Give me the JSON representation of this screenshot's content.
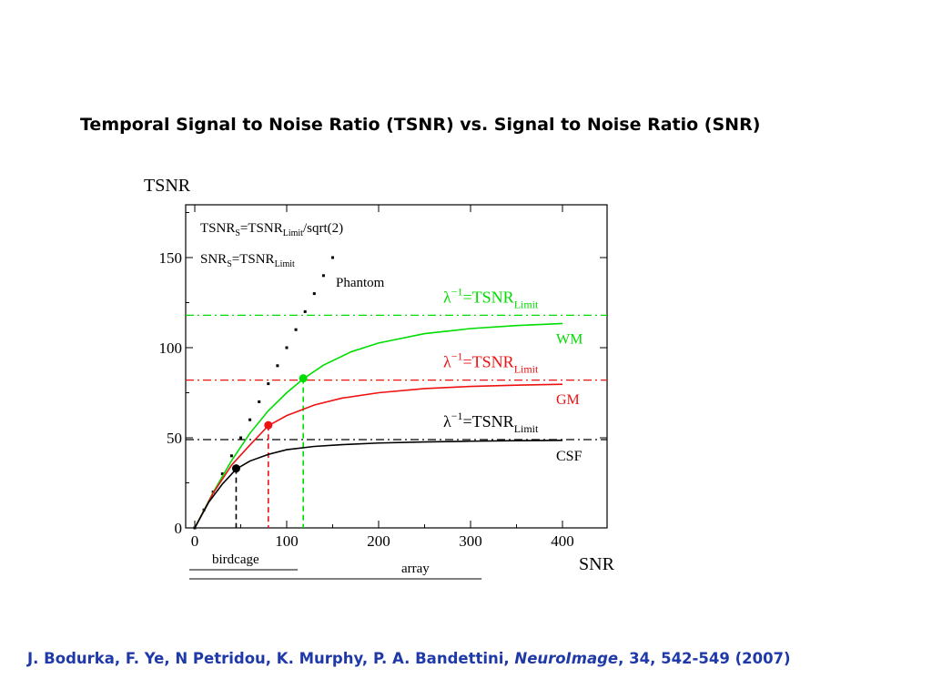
{
  "slide": {
    "title": "Temporal Signal to Noise Ratio (TSNR) vs. Signal to Noise Ratio (SNR)",
    "citation_authors": "J. Bodurka, F. Ye, N Petridou, K. Murphy, P. A. Bandettini, ",
    "citation_journal": "NeuroImage",
    "citation_rest": ", 34, 542-549 (2007)",
    "citation_color": "#1f3aa8"
  },
  "chart_data": {
    "type": "line",
    "ylabel": "TSNR",
    "xlabel": "SNR",
    "xlim": [
      0,
      450
    ],
    "ylim": [
      0,
      180
    ],
    "x_ticks": [
      0,
      100,
      200,
      300,
      400
    ],
    "y_ticks": [
      0,
      50,
      100,
      150
    ],
    "grid": false,
    "legend_text": {
      "line1_main": "TSNR",
      "line1_sub1": "S",
      "line1_mid": "=TSNR",
      "line1_sub2": "Limit",
      "line1_tail": "/sqrt(2)",
      "line2_main": "SNR",
      "line2_sub1": "S",
      "line2_mid": "=TSNR",
      "line2_sub2": "Limit"
    },
    "phantom": {
      "label": "Phantom",
      "x": [
        0,
        10,
        20,
        30,
        40,
        50,
        60,
        70,
        80,
        90,
        100,
        110,
        120,
        130,
        140,
        150
      ],
      "y": [
        0,
        10,
        20,
        30,
        40,
        50,
        60,
        70,
        80,
        90,
        100,
        110,
        120,
        130,
        140,
        150
      ]
    },
    "series": [
      {
        "name": "WM",
        "color": "#00dd00",
        "tsnr_limit": 118,
        "marker": {
          "x": 118,
          "y": 83
        },
        "x": [
          0,
          20,
          40,
          60,
          80,
          100,
          118,
          140,
          170,
          200,
          250,
          300,
          350,
          400
        ],
        "y": [
          0,
          19.7,
          37.3,
          52.5,
          65.0,
          75.0,
          82.7,
          90.3,
          97.7,
          102.6,
          107.8,
          110.6,
          112.3,
          113.4
        ]
      },
      {
        "name": "GM",
        "color": "#ee1111",
        "tsnr_limit": 82,
        "marker": {
          "x": 80,
          "y": 57
        },
        "x": [
          0,
          20,
          40,
          60,
          80,
          100,
          130,
          160,
          200,
          250,
          300,
          350,
          400
        ],
        "y": [
          0,
          19.3,
          34.8,
          46.0,
          56.7,
          62.3,
          68.2,
          72.0,
          75.0,
          77.3,
          78.5,
          79.2,
          79.7
        ]
      },
      {
        "name": "CSF",
        "color": "#000000",
        "tsnr_limit": 49,
        "marker": {
          "x": 45,
          "y": 33
        },
        "x": [
          0,
          15,
          30,
          45,
          60,
          80,
          100,
          130,
          160,
          200,
          250,
          300,
          350,
          400
        ],
        "y": [
          0,
          14.1,
          24.3,
          32.6,
          37.1,
          40.8,
          43.4,
          45.2,
          46.2,
          47.1,
          47.7,
          48.1,
          48.4,
          48.6
        ]
      }
    ],
    "limit_label": {
      "lambda": "λ",
      "sup": "−1",
      "mid": "=TSNR",
      "sub": "Limit"
    },
    "bottom_ranges": [
      {
        "label": "birdcage",
        "x": [
          0,
          110
        ]
      },
      {
        "label": "array",
        "x": [
          0,
          310
        ]
      }
    ]
  }
}
